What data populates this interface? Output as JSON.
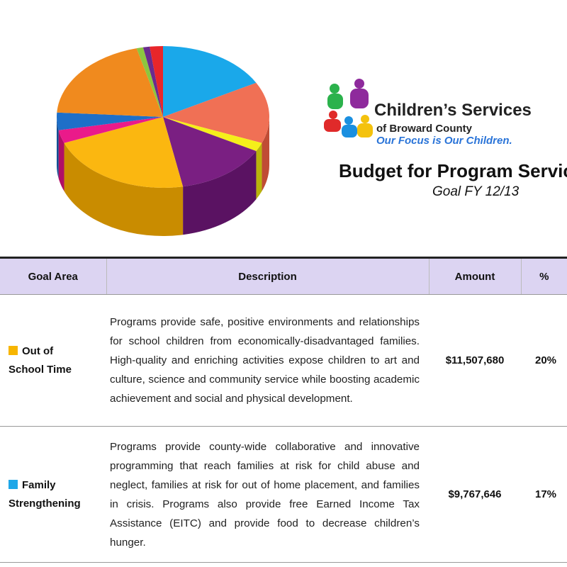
{
  "logo": {
    "name": "Children’s Services",
    "subname": "of Broward County",
    "tagline": "Our Focus is Our Children."
  },
  "header": {
    "title": "Budget for Program Servic",
    "subtitle": "Goal FY 12/13"
  },
  "table": {
    "columns": [
      "Goal Area",
      "Description",
      "Amount",
      "%"
    ],
    "rows": [
      {
        "goal_area": [
          "Out of",
          "School Time"
        ],
        "description": "Programs provide safe, positive environments and relationships for school children from economically-disadvantaged families. High-quality and enriching activities expose children to art and culture, science and community service while boosting academic achievement and social and physical development.",
        "amount": "$11,507,680",
        "percent": "20%"
      },
      {
        "goal_area": [
          "Family",
          "Strengthening"
        ],
        "description": "Programs provide county-wide collaborative and innovative programming that reach families at risk for child abuse and neglect, families at risk for out of home placement, and families in crisis. Programs also provide free Earned Income Tax Assistance (EITC) and provide food to decrease children’s hunger.",
        "amount": "$9,767,646",
        "percent": "17%"
      }
    ]
  }
}
